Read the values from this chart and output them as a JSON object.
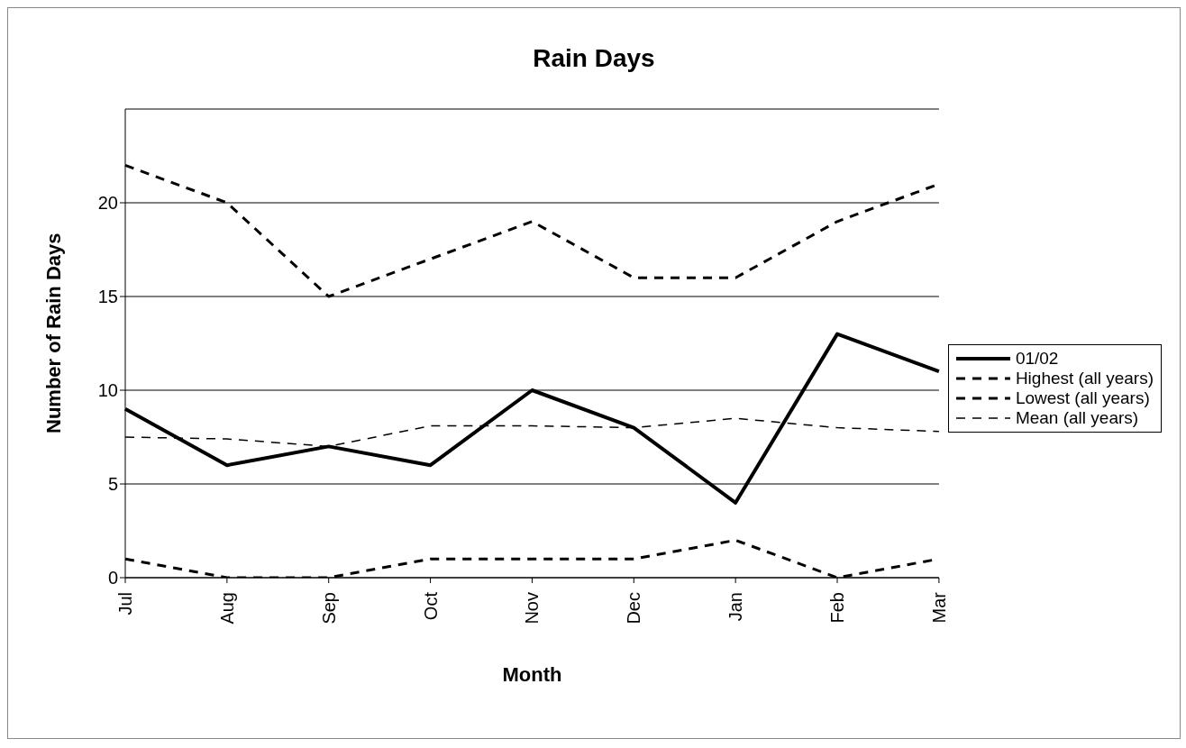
{
  "chart_data": {
    "type": "line",
    "title": "Rain Days",
    "xlabel": "Month",
    "ylabel": "Number of Rain Days",
    "categories": [
      "Jul",
      "Aug",
      "Sep",
      "Oct",
      "Nov",
      "Dec",
      "Jan",
      "Feb",
      "Mar"
    ],
    "series": [
      {
        "name": "01/02",
        "color": "#000000",
        "line_style": "solid",
        "values": [
          9,
          6,
          7,
          6,
          10,
          8,
          4,
          13,
          11
        ]
      },
      {
        "name": "Highest (all years)",
        "color": "#000000",
        "line_style": "dashed",
        "values": [
          22,
          20,
          15,
          17,
          19,
          16,
          16,
          19,
          21
        ]
      },
      {
        "name": "Lowest (all years)",
        "color": "#000000",
        "line_style": "dashed",
        "values": [
          1,
          0,
          0,
          1,
          1,
          1,
          2,
          0,
          1
        ]
      },
      {
        "name": "Mean (all years)",
        "color": "#000000",
        "line_style": "dashed",
        "values": [
          7.5,
          7.4,
          7.0,
          8.1,
          8.1,
          8.0,
          8.5,
          8.0,
          7.8
        ]
      }
    ],
    "ylim": [
      0,
      25
    ],
    "yticks": [
      0,
      5,
      10,
      15,
      20
    ],
    "grid": "y",
    "legend": "right",
    "marker": "none"
  }
}
